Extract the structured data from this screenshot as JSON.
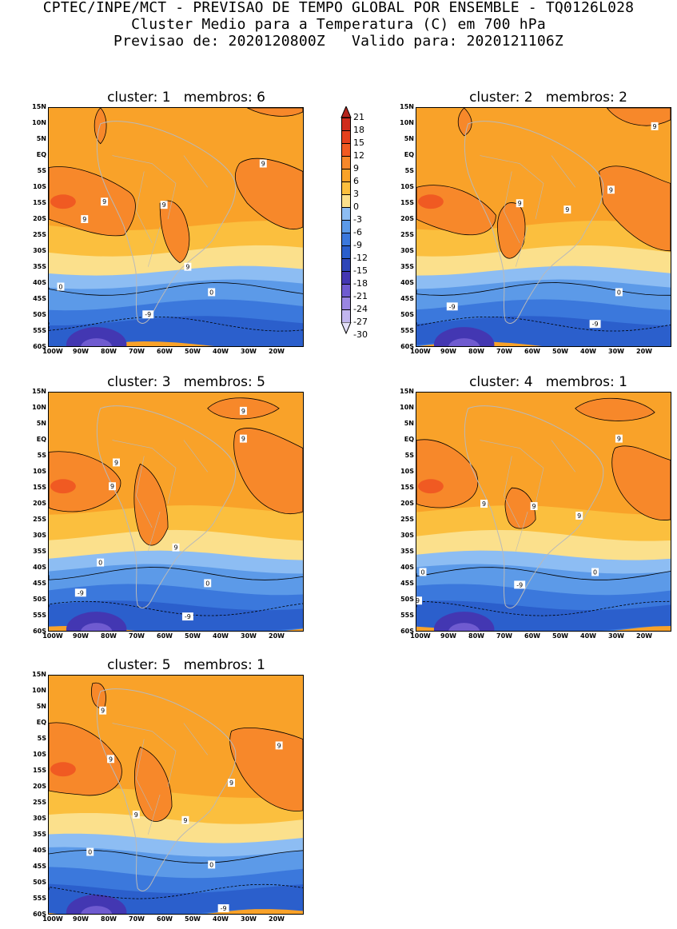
{
  "header": {
    "line1": "CPTEC/INPE/MCT - PREVISAO DE TEMPO GLOBAL POR ENSEMBLE - TQ0126L028",
    "line2": "Cluster Medio para a Temperatura (C) em 700 hPa",
    "line3": "Previsao de: 2020120800Z   Valido para: 2020121106Z"
  },
  "axes": {
    "lat_labels": [
      "15N",
      "10N",
      "5N",
      "EQ",
      "5S",
      "10S",
      "15S",
      "20S",
      "25S",
      "30S",
      "35S",
      "40S",
      "45S",
      "50S",
      "55S",
      "60S"
    ],
    "lon_labels": [
      "100W",
      "90W",
      "80W",
      "70W",
      "60W",
      "50W",
      "40W",
      "30W",
      "20W"
    ]
  },
  "colorbar": {
    "labels": [
      "21",
      "18",
      "15",
      "12",
      "9",
      "6",
      "3",
      "0",
      "-3",
      "-6",
      "-9",
      "-12",
      "-15",
      "-18",
      "-21",
      "-24",
      "-27",
      "-30"
    ],
    "colors": [
      "#b5241c",
      "#cf2d1d",
      "#e5401d",
      "#f05a22",
      "#f7882a",
      "#f9a229",
      "#fbbf3e",
      "#fbe08c",
      "#8dbdf3",
      "#5c9ae8",
      "#3b78dc",
      "#2b5fcc",
      "#2e46b8",
      "#4337b2",
      "#6f5bd0",
      "#9a86e2",
      "#c2b6ef",
      "#e4e0f8"
    ]
  },
  "panels": [
    {
      "title": "cluster: 1   membros: 6",
      "contour_labels": [
        "9",
        "9",
        "9",
        "9",
        "9",
        "0",
        "0",
        "-9"
      ]
    },
    {
      "title": "cluster: 2   membros: 2",
      "contour_labels": [
        "9",
        "9",
        "9",
        "9",
        "0",
        "-9",
        "-9"
      ]
    },
    {
      "title": "cluster: 3   membros: 5",
      "contour_labels": [
        "9",
        "9",
        "9",
        "9",
        "9",
        "0",
        "0",
        "-9",
        "-9"
      ]
    },
    {
      "title": "cluster: 4   membros: 1",
      "contour_labels": [
        "9",
        "9",
        "9",
        "9",
        "0",
        "0",
        "-9",
        "-9"
      ]
    },
    {
      "title": "cluster: 5   membros: 1",
      "contour_labels": [
        "9",
        "9",
        "9",
        "9",
        "9",
        "9",
        "0",
        "0",
        "-9"
      ]
    }
  ]
}
